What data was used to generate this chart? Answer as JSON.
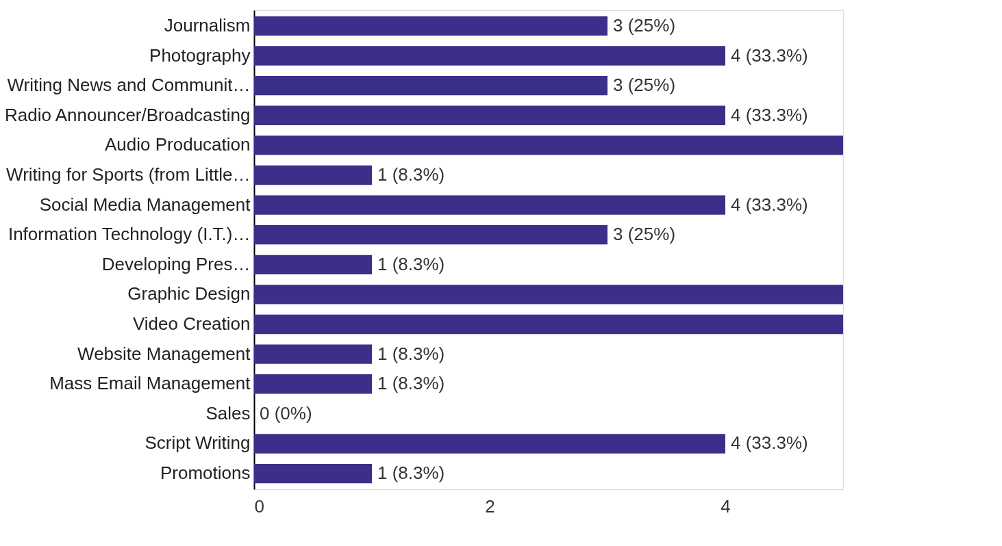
{
  "chart_data": {
    "type": "bar",
    "orientation": "horizontal",
    "categories": [
      "Journalism",
      "Photography",
      "Writing News and Communit…",
      "Radio Announcer/Broadcasting",
      "Audio Producation",
      "Writing for Sports (from Little…",
      "Social Media Management",
      "Information Technology (I.T.)…",
      "Developing Pres…",
      "Graphic Design",
      "Video Creation",
      "Website Management",
      "Mass Email Management",
      "Sales",
      "Script Writing",
      "Promotions"
    ],
    "values": [
      3,
      4,
      3,
      4,
      5,
      1,
      4,
      3,
      1,
      5,
      5,
      1,
      1,
      0,
      4,
      1
    ],
    "value_labels": [
      "3 (25%)",
      "4 (33.3%)",
      "3 (25%)",
      "4 (33.3%)",
      null,
      "1 (8.3%)",
      "4 (33.3%)",
      "3 (25%)",
      "1 (8.3%)",
      null,
      null,
      "1 (8.3%)",
      "1 (8.3%)",
      "0 (0%)",
      "4 (33.3%)",
      "1 (8.3%)"
    ],
    "color": "#3b2f8a",
    "xlim": [
      0,
      5
    ],
    "xticks": [
      0,
      2,
      4
    ],
    "grid": false
  }
}
